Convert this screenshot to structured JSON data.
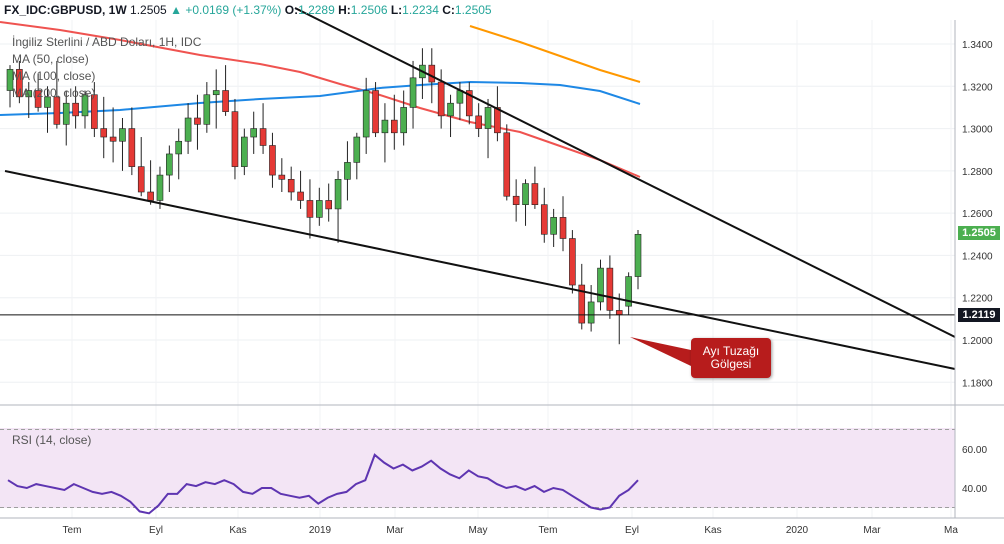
{
  "header": {
    "symbol": "FX_IDC:GBPUSD, 1W",
    "last": "1.2505",
    "change": "+0.0169 (+1.37%)",
    "o_label": "O:",
    "o": "1.2289",
    "h_label": "H:",
    "h": "1.2506",
    "l_label": "L:",
    "l": "1.2234",
    "c_label": "C:",
    "c": "1.2505",
    "up_arrow": "▲"
  },
  "legend": {
    "title": "İngiliz Sterlini / ABD Doları, 1H, IDC",
    "ma50": "MA (50, close)",
    "ma100": "MA (100, close)",
    "ma200": "MA (200, close)"
  },
  "callout_text": "Ayı Tuzağı Gölgesi",
  "rsi_label": "RSI (14, close)",
  "price_tag": "1.2505",
  "line_tag": "1.2119",
  "colors": {
    "up": "#4caf50",
    "down": "#e53935",
    "ma50": "#ef5350",
    "ma100": "#ff9800",
    "ma200": "#1e88e5",
    "rsi": "#5e35b1",
    "rsi_bg": "#f3e5f5",
    "callout": "#b71c1c"
  },
  "chart_data": [
    {
      "type": "candlestick",
      "y_ticks": [
        "1.3400",
        "1.3200",
        "1.3000",
        "1.2800",
        "1.2600",
        "1.2400",
        "1.2200",
        "1.2000",
        "1.1800"
      ],
      "x_ticks": [
        "Tem",
        "Eyl",
        "Kas",
        "2019",
        "Mar",
        "May",
        "Tem",
        "Eyl",
        "Kas",
        "2020",
        "Mar",
        "Ma"
      ],
      "ylim": [
        1.172,
        1.347
      ],
      "horizontal_level": 1.2119,
      "trendlines": [
        {
          "from": [
            "2018-06",
            1.278
          ],
          "to": [
            "2019-12",
            1.201
          ]
        },
        {
          "from": [
            "2018-06",
            1.28
          ],
          "to": [
            "2019-12",
            1.172
          ]
        }
      ],
      "ohlc": [
        [
          1.318,
          1.33,
          1.31,
          1.328
        ],
        [
          1.328,
          1.332,
          1.312,
          1.315
        ],
        [
          1.315,
          1.322,
          1.305,
          1.318
        ],
        [
          1.318,
          1.326,
          1.308,
          1.31
        ],
        [
          1.31,
          1.32,
          1.298,
          1.315
        ],
        [
          1.315,
          1.332,
          1.3,
          1.302
        ],
        [
          1.302,
          1.318,
          1.292,
          1.312
        ],
        [
          1.312,
          1.32,
          1.3,
          1.306
        ],
        [
          1.306,
          1.318,
          1.3,
          1.316
        ],
        [
          1.316,
          1.322,
          1.296,
          1.3
        ],
        [
          1.3,
          1.315,
          1.286,
          1.296
        ],
        [
          1.296,
          1.31,
          1.284,
          1.294
        ],
        [
          1.294,
          1.305,
          1.28,
          1.3
        ],
        [
          1.3,
          1.31,
          1.278,
          1.282
        ],
        [
          1.282,
          1.296,
          1.268,
          1.27
        ],
        [
          1.27,
          1.285,
          1.264,
          1.266
        ],
        [
          1.266,
          1.282,
          1.262,
          1.278
        ],
        [
          1.278,
          1.292,
          1.27,
          1.288
        ],
        [
          1.288,
          1.3,
          1.276,
          1.294
        ],
        [
          1.294,
          1.312,
          1.288,
          1.305
        ],
        [
          1.305,
          1.316,
          1.29,
          1.302
        ],
        [
          1.302,
          1.322,
          1.298,
          1.316
        ],
        [
          1.316,
          1.328,
          1.3,
          1.318
        ],
        [
          1.318,
          1.33,
          1.306,
          1.308
        ],
        [
          1.308,
          1.314,
          1.276,
          1.282
        ],
        [
          1.282,
          1.3,
          1.278,
          1.296
        ],
        [
          1.296,
          1.308,
          1.288,
          1.3
        ],
        [
          1.3,
          1.312,
          1.288,
          1.292
        ],
        [
          1.292,
          1.298,
          1.272,
          1.278
        ],
        [
          1.278,
          1.286,
          1.27,
          1.276
        ],
        [
          1.276,
          1.282,
          1.266,
          1.27
        ],
        [
          1.27,
          1.28,
          1.262,
          1.266
        ],
        [
          1.266,
          1.276,
          1.248,
          1.258
        ],
        [
          1.258,
          1.272,
          1.254,
          1.266
        ],
        [
          1.266,
          1.274,
          1.256,
          1.262
        ],
        [
          1.262,
          1.28,
          1.246,
          1.276
        ],
        [
          1.276,
          1.294,
          1.266,
          1.284
        ],
        [
          1.284,
          1.298,
          1.276,
          1.296
        ],
        [
          1.296,
          1.324,
          1.288,
          1.318
        ],
        [
          1.318,
          1.322,
          1.296,
          1.298
        ],
        [
          1.298,
          1.312,
          1.284,
          1.304
        ],
        [
          1.304,
          1.316,
          1.29,
          1.298
        ],
        [
          1.298,
          1.318,
          1.292,
          1.31
        ],
        [
          1.31,
          1.332,
          1.3,
          1.324
        ],
        [
          1.324,
          1.338,
          1.314,
          1.33
        ],
        [
          1.33,
          1.338,
          1.312,
          1.322
        ],
        [
          1.322,
          1.328,
          1.3,
          1.306
        ],
        [
          1.306,
          1.316,
          1.296,
          1.312
        ],
        [
          1.312,
          1.322,
          1.304,
          1.318
        ],
        [
          1.318,
          1.322,
          1.302,
          1.306
        ],
        [
          1.306,
          1.312,
          1.296,
          1.3
        ],
        [
          1.3,
          1.314,
          1.286,
          1.31
        ],
        [
          1.31,
          1.32,
          1.294,
          1.298
        ],
        [
          1.298,
          1.302,
          1.266,
          1.268
        ],
        [
          1.268,
          1.276,
          1.256,
          1.264
        ],
        [
          1.264,
          1.276,
          1.254,
          1.274
        ],
        [
          1.274,
          1.282,
          1.262,
          1.264
        ],
        [
          1.264,
          1.272,
          1.246,
          1.25
        ],
        [
          1.25,
          1.262,
          1.244,
          1.258
        ],
        [
          1.258,
          1.268,
          1.242,
          1.248
        ],
        [
          1.248,
          1.252,
          1.222,
          1.226
        ],
        [
          1.226,
          1.236,
          1.205,
          1.208
        ],
        [
          1.208,
          1.226,
          1.204,
          1.218
        ],
        [
          1.218,
          1.238,
          1.214,
          1.234
        ],
        [
          1.234,
          1.24,
          1.21,
          1.214
        ],
        [
          1.214,
          1.222,
          1.198,
          1.212
        ],
        [
          1.216,
          1.232,
          1.212,
          1.23
        ],
        [
          1.23,
          1.252,
          1.224,
          1.25
        ]
      ]
    },
    {
      "type": "line",
      "title": "RSI (14, close)",
      "y_ticks": [
        "60.00",
        "40.00"
      ],
      "ylim": [
        25,
        72
      ],
      "values": [
        44,
        41,
        40,
        42,
        41,
        40,
        39,
        42,
        40,
        38,
        37,
        38,
        36,
        33,
        28,
        27,
        31,
        37,
        37,
        42,
        41,
        43,
        42,
        44,
        42,
        38,
        37,
        40,
        40,
        37,
        36,
        35,
        36,
        32,
        35,
        37,
        38,
        42,
        44,
        57,
        53,
        50,
        52,
        49,
        51,
        54,
        50,
        47,
        45,
        49,
        46,
        45,
        42,
        40,
        41,
        39,
        41,
        38,
        40,
        39,
        36,
        33,
        30,
        29,
        30,
        36,
        39,
        44
      ]
    }
  ]
}
